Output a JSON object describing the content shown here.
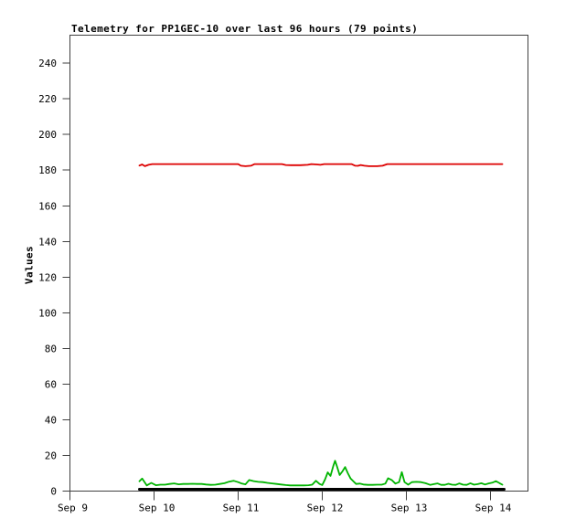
{
  "chart": {
    "title": "Telemetry for PP1GEC-10 over last 96 hours (79 points)",
    "ylabel": "Values"
  },
  "colors": {
    "red_series": "#dd0000",
    "green_series": "#00b400",
    "black_series": "#000000",
    "axis": "#404040",
    "text": "#000000",
    "background": "#ffffff"
  },
  "chart_data": {
    "type": "line",
    "title": "Telemetry for PP1GEC-10 over last 96 hours (79 points)",
    "xlabel": "",
    "ylabel": "Values",
    "grid": false,
    "legend": null,
    "ylim": [
      0,
      255.7
    ],
    "xlim_days": [
      0,
      5.4457
    ],
    "y_ticks": [
      0,
      20,
      40,
      60,
      80,
      100,
      120,
      140,
      160,
      180,
      200,
      220,
      240
    ],
    "x_ticks": [
      {
        "day": 0,
        "label": "Sep 9"
      },
      {
        "day": 1,
        "label": "Sep 10"
      },
      {
        "day": 2,
        "label": "Sep 11"
      },
      {
        "day": 3,
        "label": "Sep 12"
      },
      {
        "day": 4,
        "label": "Sep 13"
      },
      {
        "day": 5,
        "label": "Sep 14"
      }
    ],
    "series": [
      {
        "name": "red-series",
        "color_key": "red_series",
        "stroke_width": 1.8,
        "points": [
          [
            0.826,
            182.6
          ],
          [
            0.859,
            183.2
          ],
          [
            0.891,
            182.2
          ],
          [
            0.935,
            183.0
          ],
          [
            0.978,
            183.4
          ],
          [
            2.0,
            183.4
          ],
          [
            2.033,
            182.5
          ],
          [
            2.087,
            182.2
          ],
          [
            2.152,
            182.5
          ],
          [
            2.196,
            183.4
          ],
          [
            2.522,
            183.4
          ],
          [
            2.565,
            182.9
          ],
          [
            2.63,
            182.8
          ],
          [
            2.739,
            182.8
          ],
          [
            2.826,
            183.0
          ],
          [
            2.87,
            183.4
          ],
          [
            2.935,
            183.2
          ],
          [
            2.978,
            183.0
          ],
          [
            3.022,
            183.4
          ],
          [
            3.348,
            183.4
          ],
          [
            3.391,
            182.5
          ],
          [
            3.424,
            182.4
          ],
          [
            3.457,
            182.9
          ],
          [
            3.5,
            182.5
          ],
          [
            3.554,
            182.2
          ],
          [
            3.652,
            182.2
          ],
          [
            3.717,
            182.5
          ],
          [
            3.772,
            183.4
          ],
          [
            5.141,
            183.4
          ]
        ]
      },
      {
        "name": "green-series",
        "color_key": "green_series",
        "stroke_width": 1.8,
        "points": [
          [
            0.826,
            5.5
          ],
          [
            0.859,
            7.0
          ],
          [
            0.913,
            3.2
          ],
          [
            0.967,
            4.6
          ],
          [
            1.022,
            3.3
          ],
          [
            1.076,
            3.6
          ],
          [
            1.13,
            3.6
          ],
          [
            1.185,
            4.0
          ],
          [
            1.239,
            4.3
          ],
          [
            1.293,
            3.8
          ],
          [
            1.348,
            4.0
          ],
          [
            1.402,
            4.0
          ],
          [
            1.457,
            4.1
          ],
          [
            1.511,
            4.0
          ],
          [
            1.565,
            4.0
          ],
          [
            1.62,
            3.7
          ],
          [
            1.674,
            3.5
          ],
          [
            1.728,
            3.6
          ],
          [
            1.783,
            4.0
          ],
          [
            1.837,
            4.4
          ],
          [
            1.891,
            5.3
          ],
          [
            1.946,
            5.8
          ],
          [
            2.0,
            5.0
          ],
          [
            2.043,
            4.2
          ],
          [
            2.087,
            3.8
          ],
          [
            2.13,
            6.2
          ],
          [
            2.185,
            5.6
          ],
          [
            2.239,
            5.2
          ],
          [
            2.293,
            5.0
          ],
          [
            2.348,
            4.6
          ],
          [
            2.402,
            4.3
          ],
          [
            2.457,
            4.0
          ],
          [
            2.511,
            3.7
          ],
          [
            2.565,
            3.4
          ],
          [
            2.62,
            3.2
          ],
          [
            2.674,
            3.2
          ],
          [
            2.728,
            3.2
          ],
          [
            2.783,
            3.2
          ],
          [
            2.837,
            3.3
          ],
          [
            2.88,
            3.6
          ],
          [
            2.924,
            5.8
          ],
          [
            2.967,
            4.0
          ],
          [
            3.0,
            3.4
          ],
          [
            3.033,
            6.5
          ],
          [
            3.065,
            10.5
          ],
          [
            3.098,
            8.5
          ],
          [
            3.13,
            14.0
          ],
          [
            3.152,
            17.0
          ],
          [
            3.174,
            14.0
          ],
          [
            3.207,
            9.0
          ],
          [
            3.239,
            11.0
          ],
          [
            3.272,
            13.5
          ],
          [
            3.304,
            10.0
          ],
          [
            3.337,
            7.0
          ],
          [
            3.37,
            5.5
          ],
          [
            3.402,
            4.0
          ],
          [
            3.446,
            4.2
          ],
          [
            3.489,
            3.7
          ],
          [
            3.543,
            3.5
          ],
          [
            3.598,
            3.5
          ],
          [
            3.652,
            3.6
          ],
          [
            3.707,
            3.6
          ],
          [
            3.75,
            4.2
          ],
          [
            3.783,
            7.2
          ],
          [
            3.826,
            6.2
          ],
          [
            3.87,
            4.2
          ],
          [
            3.913,
            5.0
          ],
          [
            3.946,
            10.6
          ],
          [
            3.978,
            5.0
          ],
          [
            4.022,
            3.6
          ],
          [
            4.065,
            5.0
          ],
          [
            4.12,
            5.2
          ],
          [
            4.174,
            5.0
          ],
          [
            4.228,
            4.4
          ],
          [
            4.283,
            3.5
          ],
          [
            4.326,
            3.9
          ],
          [
            4.37,
            4.3
          ],
          [
            4.413,
            3.5
          ],
          [
            4.457,
            3.5
          ],
          [
            4.5,
            4.1
          ],
          [
            4.543,
            3.6
          ],
          [
            4.587,
            3.5
          ],
          [
            4.63,
            4.3
          ],
          [
            4.674,
            3.6
          ],
          [
            4.717,
            3.5
          ],
          [
            4.761,
            4.4
          ],
          [
            4.804,
            3.6
          ],
          [
            4.848,
            3.9
          ],
          [
            4.891,
            4.4
          ],
          [
            4.935,
            3.7
          ],
          [
            4.978,
            4.3
          ],
          [
            5.022,
            4.7
          ],
          [
            5.065,
            5.6
          ],
          [
            5.109,
            4.4
          ],
          [
            5.141,
            3.6
          ]
        ]
      },
      {
        "name": "black-series",
        "color_key": "black_series",
        "stroke_width": 3,
        "points": [
          [
            0.826,
            1.0
          ],
          [
            5.163,
            1.0
          ]
        ]
      }
    ]
  }
}
